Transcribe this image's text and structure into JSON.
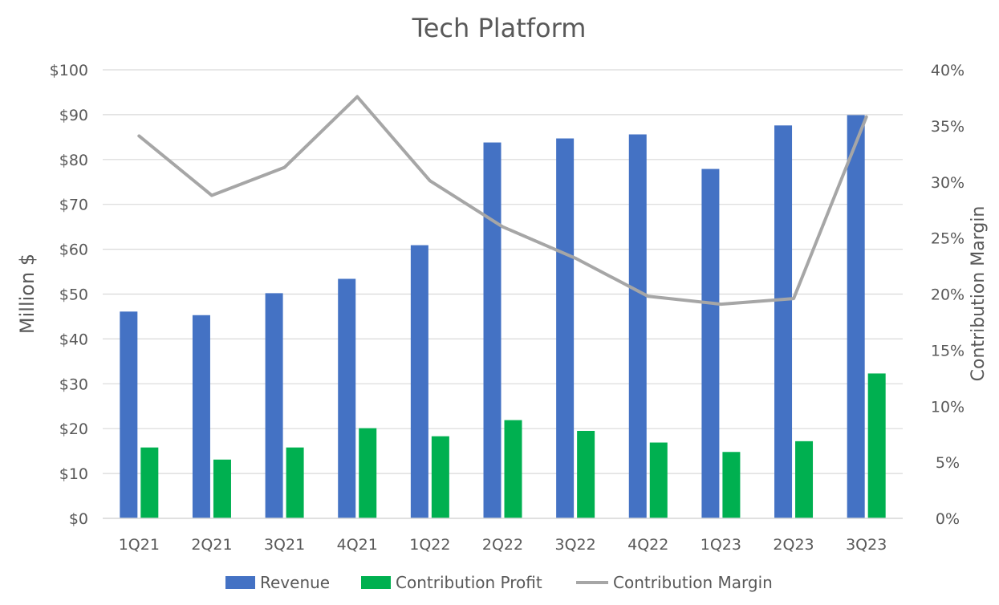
{
  "chart_data": {
    "type": "bar",
    "title": "Tech Platform",
    "categories": [
      "1Q21",
      "2Q21",
      "3Q21",
      "4Q21",
      "1Q22",
      "2Q22",
      "3Q22",
      "4Q22",
      "1Q23",
      "2Q23",
      "3Q23"
    ],
    "ylabel": "Million $",
    "ylabel_right": "Contribution Margin",
    "ylim": [
      0,
      100
    ],
    "ylim_right": [
      0,
      0.4
    ],
    "y_ticks": [
      "$0",
      "$10",
      "$20",
      "$30",
      "$40",
      "$50",
      "$60",
      "$70",
      "$80",
      "$90",
      "$100"
    ],
    "y_ticks_right": [
      "0%",
      "5%",
      "10%",
      "15%",
      "20%",
      "25%",
      "30%",
      "35%",
      "40%"
    ],
    "grid": true,
    "legend_position": "bottom",
    "series": [
      {
        "name": "Revenue",
        "type": "bar",
        "axis": "left",
        "color": "#4472C4",
        "values": [
          46.1,
          45.3,
          50.2,
          53.4,
          60.9,
          83.8,
          84.7,
          85.6,
          77.9,
          87.6,
          89.9
        ]
      },
      {
        "name": "Contribution Profit",
        "type": "bar",
        "axis": "left",
        "color": "#00B050",
        "values": [
          15.8,
          13.1,
          15.8,
          20.1,
          18.3,
          21.9,
          19.5,
          16.9,
          14.8,
          17.2,
          32.3
        ]
      },
      {
        "name": "Contribution Margin",
        "type": "line",
        "axis": "right",
        "color": "#A6A6A6",
        "values": [
          0.341,
          0.288,
          0.313,
          0.376,
          0.301,
          0.26,
          0.232,
          0.198,
          0.191,
          0.196,
          0.358
        ]
      }
    ]
  }
}
